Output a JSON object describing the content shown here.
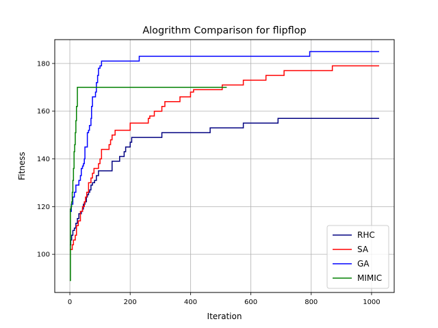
{
  "chart_data": {
    "type": "line",
    "title": "Alogrithm Comparison for flipflop",
    "xlabel": "Iteration",
    "ylabel": "Fitness",
    "xlim": [
      -50,
      1075
    ],
    "ylim": [
      84,
      190
    ],
    "xticks": [
      0,
      200,
      400,
      600,
      800,
      1000
    ],
    "yticks": [
      100,
      120,
      140,
      160,
      180
    ],
    "xtick_labels": [
      "0",
      "200",
      "400",
      "600",
      "800",
      "1000"
    ],
    "ytick_labels": [
      "100",
      "120",
      "140",
      "160",
      "180"
    ],
    "grid": true,
    "legend_position": "lower-right",
    "series": [
      {
        "name": "RHC",
        "color": "#000080",
        "points": [
          [
            0,
            104
          ],
          [
            3,
            106
          ],
          [
            6,
            108
          ],
          [
            10,
            110
          ],
          [
            15,
            111
          ],
          [
            20,
            113
          ],
          [
            25,
            115
          ],
          [
            30,
            117
          ],
          [
            38,
            118
          ],
          [
            42,
            119
          ],
          [
            45,
            121
          ],
          [
            50,
            122
          ],
          [
            55,
            124
          ],
          [
            58,
            125
          ],
          [
            62,
            126
          ],
          [
            66,
            127
          ],
          [
            70,
            129
          ],
          [
            75,
            130
          ],
          [
            82,
            131
          ],
          [
            88,
            133
          ],
          [
            95,
            135
          ],
          [
            140,
            137
          ],
          [
            140,
            139
          ],
          [
            165,
            141
          ],
          [
            180,
            143
          ],
          [
            185,
            145
          ],
          [
            200,
            147
          ],
          [
            205,
            149
          ],
          [
            305,
            151
          ],
          [
            465,
            153
          ],
          [
            575,
            155
          ],
          [
            690,
            157
          ],
          [
            1025,
            157
          ]
        ]
      },
      {
        "name": "SA",
        "color": "#ff0000",
        "points": [
          [
            0,
            102
          ],
          [
            8,
            104
          ],
          [
            12,
            106
          ],
          [
            18,
            108
          ],
          [
            22,
            112
          ],
          [
            28,
            114
          ],
          [
            35,
            118
          ],
          [
            42,
            120
          ],
          [
            48,
            122
          ],
          [
            52,
            124
          ],
          [
            56,
            126
          ],
          [
            62,
            130
          ],
          [
            70,
            132
          ],
          [
            75,
            134
          ],
          [
            80,
            136
          ],
          [
            95,
            138
          ],
          [
            100,
            140
          ],
          [
            105,
            144
          ],
          [
            130,
            146
          ],
          [
            135,
            148
          ],
          [
            140,
            150
          ],
          [
            150,
            152
          ],
          [
            200,
            155
          ],
          [
            260,
            157
          ],
          [
            265,
            158
          ],
          [
            280,
            160
          ],
          [
            305,
            162
          ],
          [
            315,
            164
          ],
          [
            365,
            166
          ],
          [
            400,
            168
          ],
          [
            410,
            169
          ],
          [
            505,
            170
          ],
          [
            505,
            171
          ],
          [
            560,
            171
          ],
          [
            575,
            173
          ],
          [
            650,
            175
          ],
          [
            710,
            177
          ],
          [
            870,
            179
          ],
          [
            1025,
            179
          ]
        ]
      },
      {
        "name": "GA",
        "color": "#0000ff",
        "points": [
          [
            0,
            118
          ],
          [
            5,
            121
          ],
          [
            10,
            124
          ],
          [
            15,
            126
          ],
          [
            20,
            129
          ],
          [
            25,
            129
          ],
          [
            30,
            131
          ],
          [
            35,
            133
          ],
          [
            38,
            136
          ],
          [
            42,
            137
          ],
          [
            45,
            138
          ],
          [
            48,
            140
          ],
          [
            50,
            145
          ],
          [
            55,
            145
          ],
          [
            58,
            151
          ],
          [
            62,
            152
          ],
          [
            65,
            154
          ],
          [
            70,
            157
          ],
          [
            72,
            162
          ],
          [
            75,
            166
          ],
          [
            80,
            166
          ],
          [
            85,
            168
          ],
          [
            88,
            172
          ],
          [
            92,
            175
          ],
          [
            95,
            178
          ],
          [
            100,
            179
          ],
          [
            105,
            181
          ],
          [
            230,
            181
          ],
          [
            230,
            183
          ],
          [
            790,
            183
          ],
          [
            795,
            185
          ],
          [
            1025,
            185
          ]
        ]
      },
      {
        "name": "MIMIC",
        "color": "#008000",
        "points": [
          [
            0,
            89
          ],
          [
            2,
            119
          ],
          [
            4,
            120
          ],
          [
            6,
            122
          ],
          [
            8,
            126
          ],
          [
            10,
            131
          ],
          [
            12,
            136
          ],
          [
            14,
            143
          ],
          [
            16,
            146
          ],
          [
            18,
            151
          ],
          [
            20,
            156
          ],
          [
            22,
            162
          ],
          [
            25,
            170
          ],
          [
            520,
            170
          ]
        ]
      }
    ]
  }
}
